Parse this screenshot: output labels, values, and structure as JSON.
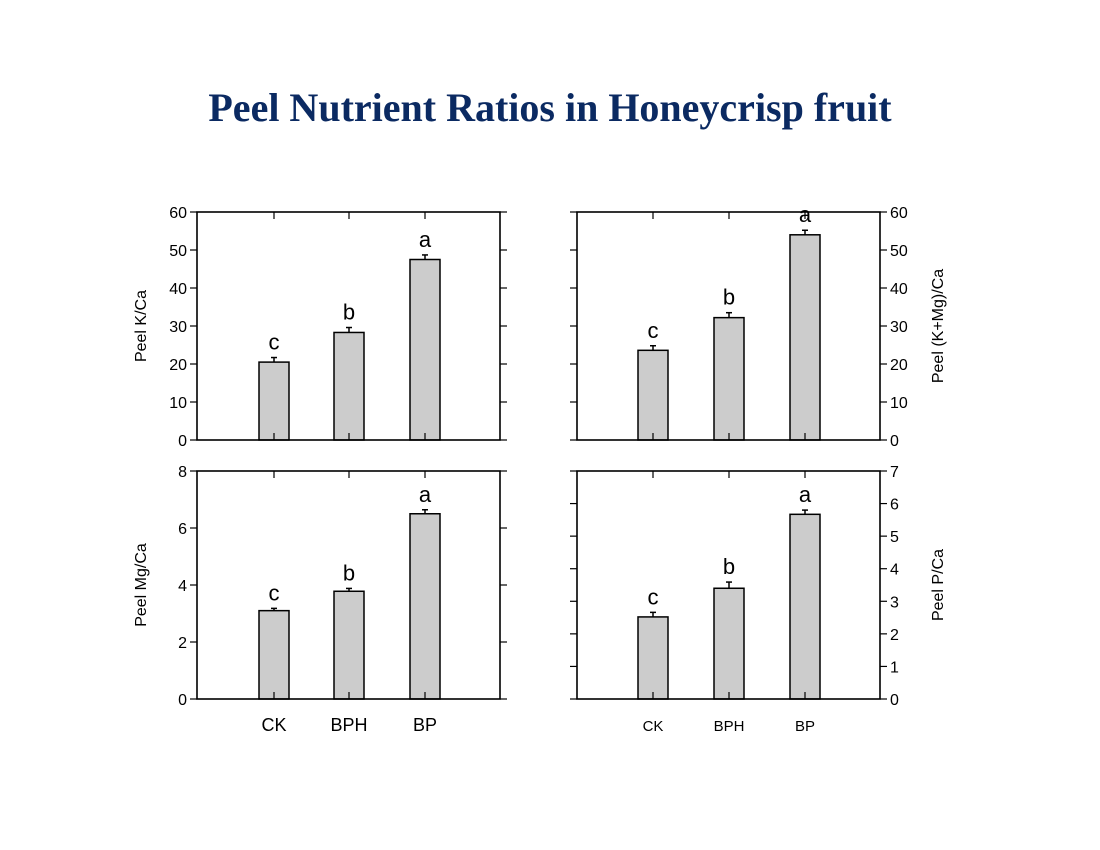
{
  "title": "Peel Nutrient Ratios in Honeycrisp fruit",
  "colors": {
    "title": "#0b2a62",
    "bar_fill": "#cccccc",
    "bar_stroke": "#000000"
  },
  "chart_data": [
    {
      "type": "bar",
      "panel": "top-left",
      "categories": [
        "CK",
        "BPH",
        "BP"
      ],
      "values": [
        20.5,
        28.3,
        47.5
      ],
      "errors": [
        1.2,
        1.3,
        1.2
      ],
      "significance": [
        "c",
        "b",
        "a"
      ],
      "ylabel": "Peel K/Ca",
      "ylim": [
        0,
        60
      ],
      "yticks": [
        0,
        10,
        20,
        30,
        40,
        50,
        60
      ],
      "ytick_labels": [
        "0",
        "10",
        "20",
        "30",
        "40",
        "50",
        "60"
      ],
      "y_axis_side": "left",
      "show_category_labels": false
    },
    {
      "type": "bar",
      "panel": "top-right",
      "categories": [
        "CK",
        "BPH",
        "BP"
      ],
      "values": [
        23.6,
        32.2,
        54.0
      ],
      "errors": [
        1.2,
        1.3,
        1.2
      ],
      "significance": [
        "c",
        "b",
        "a"
      ],
      "ylabel": "Peel (K+Mg)/Ca",
      "ylim": [
        0,
        60
      ],
      "yticks": [
        0,
        10,
        20,
        30,
        40,
        50,
        60
      ],
      "ytick_labels": [
        "0",
        "10",
        "20",
        "30",
        "40",
        "50",
        "60"
      ],
      "y_axis_side": "right",
      "show_category_labels": false
    },
    {
      "type": "bar",
      "panel": "bottom-left",
      "categories": [
        "CK",
        "BPH",
        "BP"
      ],
      "values": [
        3.1,
        3.78,
        6.5
      ],
      "errors": [
        0.08,
        0.1,
        0.14
      ],
      "significance": [
        "c",
        "b",
        "a"
      ],
      "ylabel": "Peel Mg/Ca",
      "ylim": [
        0,
        8
      ],
      "yticks": [
        0,
        2,
        4,
        6,
        8
      ],
      "ytick_labels": [
        "0",
        "2",
        "4",
        "6",
        "8"
      ],
      "y_axis_side": "left",
      "show_category_labels": true,
      "category_label_size": "large"
    },
    {
      "type": "bar",
      "panel": "bottom-right",
      "categories": [
        "CK",
        "BPH",
        "BP"
      ],
      "values": [
        2.52,
        3.4,
        5.67
      ],
      "errors": [
        0.14,
        0.19,
        0.13
      ],
      "significance": [
        "c",
        "b",
        "a"
      ],
      "ylabel": "Peel P/Ca",
      "ylim": [
        0,
        7
      ],
      "yticks": [
        0,
        1,
        2,
        3,
        4,
        5,
        6,
        7
      ],
      "ytick_labels": [
        "0",
        "1",
        "2",
        "3",
        "4",
        "5",
        "6",
        "7"
      ],
      "y_axis_side": "right",
      "show_category_labels": true,
      "category_label_size": "small"
    }
  ]
}
